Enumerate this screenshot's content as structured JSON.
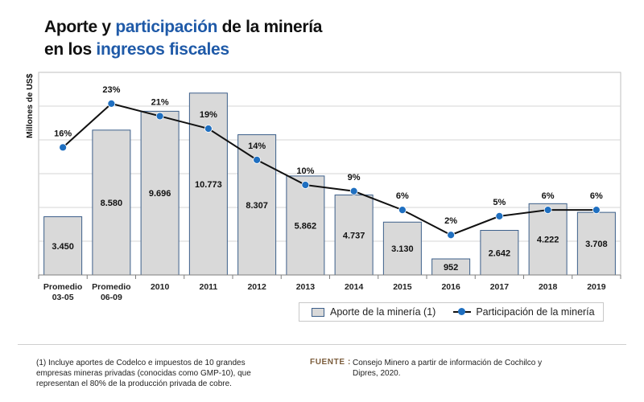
{
  "header": {
    "title_part1": "Aporte y ",
    "title_highlight1": "participación",
    "title_part2": " de la minería",
    "title_part3": "en los ",
    "title_highlight2": "ingresos fiscales"
  },
  "chart_data": {
    "type": "bar",
    "title": "Aporte y participación de la minería en los ingresos fiscales",
    "ylabel": "Millones de US$",
    "categories": [
      "Promedio\n03-05",
      "Promedio\n06-09",
      "2010",
      "2011",
      "2012",
      "2013",
      "2014",
      "2015",
      "2016",
      "2017",
      "2018",
      "2019"
    ],
    "ylim": [
      0,
      12000
    ],
    "grid": true,
    "legend_position": "bottom-right",
    "series": [
      {
        "name": "Aporte de la minería (1)",
        "type": "bar",
        "values": [
          3450,
          8580,
          9696,
          10773,
          8307,
          5862,
          4737,
          3130,
          952,
          2642,
          4222,
          3708
        ],
        "labels": [
          "3.450",
          "8.580",
          "9.696",
          "10.773",
          "8.307",
          "5.862",
          "4.737",
          "3.130",
          "952",
          "2.642",
          "4.222",
          "3.708"
        ],
        "color": "#d9d9d9",
        "border_color": "#3c5f8a"
      },
      {
        "name": "Participación de la minería",
        "type": "line",
        "values": [
          16,
          23,
          21,
          19,
          14,
          10,
          9,
          6,
          2,
          5,
          6,
          6
        ],
        "labels": [
          "16%",
          "23%",
          "21%",
          "19%",
          "14%",
          "10%",
          "9%",
          "6%",
          "2%",
          "5%",
          "6%",
          "6%"
        ],
        "line_color": "#111111",
        "marker_color": "#1f6fc0"
      }
    ]
  },
  "footnote": "(1) Incluye aportes de Codelco e impuestos de 10 grandes empresas mineras privadas (conocidas como GMP-10), que representan el 80% de la producción privada de cobre.",
  "source": {
    "label": "FUENTE :",
    "text": "Consejo Minero a partir de información de Cochilco y Dipres, 2020."
  }
}
